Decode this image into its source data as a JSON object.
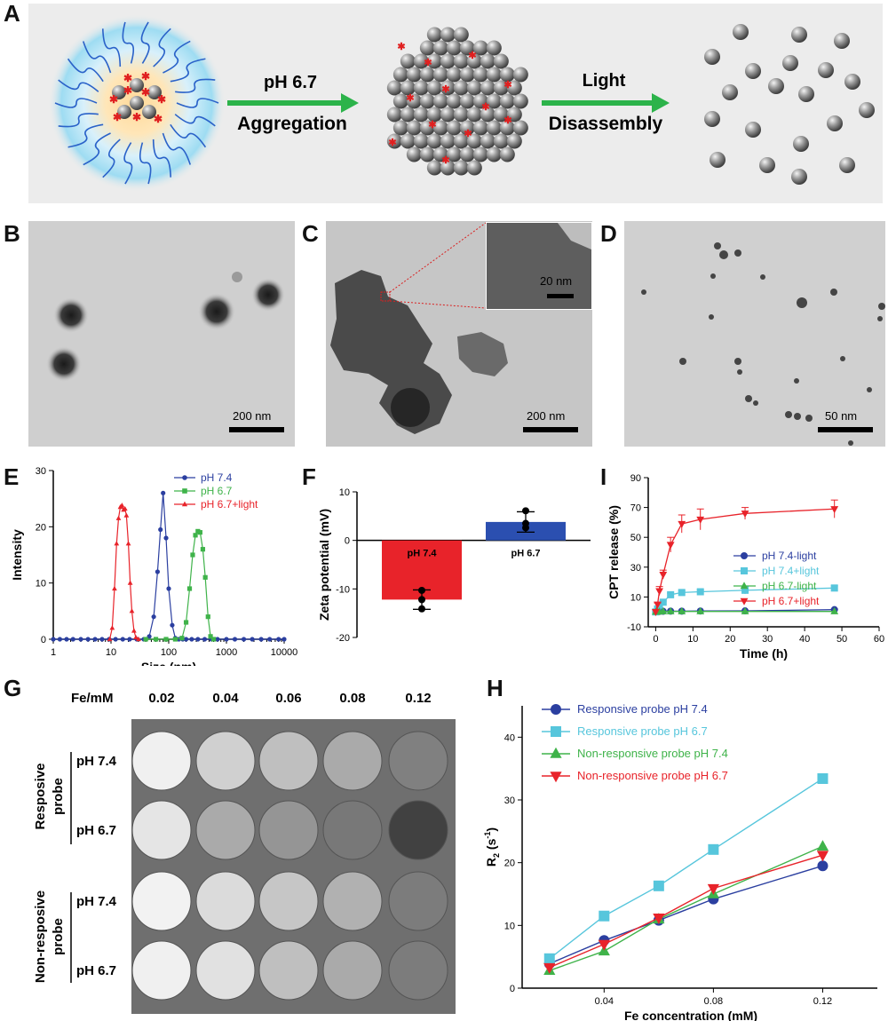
{
  "panel_labels": {
    "A": "A",
    "B": "B",
    "C": "C",
    "D": "D",
    "E": "E",
    "F": "F",
    "I": "I",
    "G": "G",
    "H": "H"
  },
  "schematic": {
    "arrow1_top": "pH 6.7",
    "arrow1_bottom": "Aggregation",
    "arrow2_top": "Light",
    "arrow2_bottom": "Disassembly"
  },
  "tem": {
    "b_scale": "200 nm",
    "c_scale": "200 nm",
    "c_inset_scale": "20 nm",
    "d_scale": "50 nm"
  },
  "colors": {
    "blue": "#2b3fa0",
    "green": "#3fb34a",
    "red": "#e8232a",
    "cyan": "#57c6dc",
    "arrow": "#2cb34a"
  },
  "mri": {
    "fe_label": "Fe/mM",
    "concentrations": [
      "0.02",
      "0.04",
      "0.06",
      "0.08",
      "0.12"
    ],
    "group1": "Resposive probe",
    "group1_line1": "Resposive",
    "group1_line2": "probe",
    "group2_line1": "Non-resposive",
    "group2_line2": "probe",
    "row_labels": [
      "pH 7.4",
      "pH 6.7",
      "pH 7.4",
      "pH 6.7"
    ],
    "brightness": [
      [
        0.95,
        0.8,
        0.72,
        0.62,
        0.42
      ],
      [
        0.9,
        0.62,
        0.52,
        0.38,
        0.12
      ],
      [
        0.96,
        0.85,
        0.75,
        0.65,
        0.4
      ],
      [
        0.95,
        0.88,
        0.72,
        0.62,
        0.4
      ]
    ]
  },
  "chart_data": [
    {
      "id": "E",
      "type": "line",
      "xscale": "log",
      "xlabel": "Size (nm)",
      "ylabel": "Intensity",
      "xlim": [
        1,
        10000
      ],
      "ylim": [
        0,
        30
      ],
      "xticks": [
        "1",
        "10",
        "100",
        "1000",
        "10000"
      ],
      "yticks": [
        "0",
        "10",
        "20",
        "30"
      ],
      "series": [
        {
          "name": "pH 7.4",
          "marker": "circle",
          "color": "#2b3fa0",
          "x": [
            1,
            1.3,
            1.7,
            2.2,
            3,
            4,
            5.3,
            7,
            9.3,
            12,
            16,
            21,
            28,
            37,
            46,
            55,
            64,
            72,
            80,
            90,
            100,
            115,
            130,
            150,
            175,
            200,
            250,
            320,
            420,
            550,
            700,
            1000,
            1400,
            2000,
            2800,
            4000,
            5600,
            8000,
            10000
          ],
          "y": [
            0,
            0,
            0,
            0,
            0,
            0,
            0,
            0,
            0,
            0,
            0,
            0,
            0,
            0,
            0.5,
            4,
            12,
            19.5,
            26,
            18,
            9,
            2.5,
            0.2,
            0,
            0,
            0,
            0,
            0,
            0,
            0,
            0,
            0,
            0,
            0,
            0,
            0,
            0,
            0,
            0
          ]
        },
        {
          "name": "pH 6.7",
          "marker": "square",
          "color": "#3fb34a",
          "x": [
            40,
            60,
            90,
            130,
            170,
            200,
            230,
            260,
            290,
            320,
            350,
            390,
            430,
            480,
            530,
            600
          ],
          "y": [
            0,
            0,
            0,
            0,
            0.2,
            3,
            9,
            15,
            18.5,
            19.2,
            19,
            16,
            11,
            4,
            0.5,
            0
          ]
        },
        {
          "name": "pH 6.7+light",
          "marker": "triangle",
          "color": "#e8232a",
          "x": [
            9.5,
            10.5,
            11.5,
            12.5,
            13.5,
            14.5,
            15.5,
            16.5,
            17.5,
            18.5,
            20,
            21.5,
            23,
            25,
            27,
            30
          ],
          "y": [
            0,
            2,
            9,
            17,
            21.5,
            23.5,
            23.8,
            23,
            23.2,
            22,
            17,
            10,
            5,
            1.5,
            0.3,
            0
          ]
        }
      ]
    },
    {
      "id": "F",
      "type": "bar",
      "ylabel": "Zeta potential (mV)",
      "ylim": [
        -20,
        10
      ],
      "yticks": [
        "-20",
        "-10",
        "0",
        "10"
      ],
      "categories": [
        "pH 7.4",
        "pH 6.7"
      ],
      "values": [
        -12.2,
        3.8
      ],
      "errors": [
        2.0,
        2.1
      ],
      "points": [
        [
          -10.3,
          -14.1,
          -12.2
        ],
        [
          6.1,
          2.6,
          3.5
        ]
      ],
      "bar_colors": [
        "#e8232a",
        "#2b4fb0"
      ]
    },
    {
      "id": "I",
      "type": "line",
      "xlabel": "Time (h)",
      "ylabel": "CPT release (%)",
      "xlim": [
        -2,
        60
      ],
      "ylim": [
        -10,
        90
      ],
      "xticks": [
        "0",
        "10",
        "20",
        "30",
        "40",
        "50",
        "60"
      ],
      "yticks": [
        "-10",
        "10",
        "30",
        "50",
        "70",
        "90"
      ],
      "series": [
        {
          "name": "pH 7.4-light",
          "marker": "circle",
          "color": "#2b3fa0",
          "x": [
            0,
            0.5,
            1,
            2,
            4,
            7,
            12,
            24,
            48
          ],
          "y": [
            0,
            0.2,
            0.3,
            0.4,
            0.5,
            0.5,
            0.6,
            0.7,
            1.5
          ],
          "err": [
            0,
            0,
            0,
            0,
            0,
            0,
            0,
            0,
            0.5
          ]
        },
        {
          "name": "pH 7.4+light",
          "marker": "square",
          "color": "#57c6dc",
          "x": [
            0,
            0.5,
            1,
            2,
            4,
            7,
            12,
            24,
            48
          ],
          "y": [
            0,
            2,
            4.5,
            6.5,
            11.5,
            13,
            13.5,
            14.5,
            16
          ],
          "err": [
            0,
            0.5,
            0.8,
            0.8,
            1,
            1.2,
            1.2,
            2.5,
            1.5
          ]
        },
        {
          "name": "pH 6.7-light",
          "marker": "triangle",
          "color": "#3fb34a",
          "x": [
            0,
            0.5,
            1,
            2,
            4,
            7,
            12,
            24,
            48
          ],
          "y": [
            0,
            0.1,
            0.2,
            0.3,
            0.3,
            0.3,
            0.3,
            0.3,
            0.3
          ],
          "err": [
            0,
            0,
            0,
            0,
            0,
            0,
            0,
            0,
            0
          ]
        },
        {
          "name": "pH 6.7+light",
          "marker": "triangle-down",
          "color": "#e8232a",
          "x": [
            0,
            0.5,
            1,
            2,
            4,
            7,
            12,
            24,
            48
          ],
          "y": [
            0,
            5,
            14,
            25,
            45,
            59,
            62,
            66,
            69
          ],
          "err": [
            0,
            1,
            3,
            3,
            5,
            6,
            7,
            4,
            6
          ]
        }
      ]
    },
    {
      "id": "H",
      "type": "line",
      "xlabel": "Fe concentration (mM)",
      "ylabel": "R",
      "ylabel_sub": "2",
      "ylabel_unit": " (s",
      "ylabel_sup": "-1",
      "ylabel_end": ")",
      "xlim": [
        0.01,
        0.14
      ],
      "ylim": [
        0,
        45
      ],
      "xticks": [
        "0.04",
        "0.08",
        "0.12"
      ],
      "yticks": [
        "0",
        "10",
        "20",
        "30",
        "40"
      ],
      "series": [
        {
          "name": "Responsive probe pH 7.4",
          "marker": "circle",
          "color": "#2b3fa0",
          "x": [
            0.02,
            0.04,
            0.06,
            0.08,
            0.12
          ],
          "y": [
            3.9,
            7.6,
            10.8,
            14.2,
            19.5
          ]
        },
        {
          "name": "Responsive probe pH 6.7",
          "marker": "square",
          "color": "#57c6dc",
          "x": [
            0.02,
            0.04,
            0.06,
            0.08,
            0.12
          ],
          "y": [
            4.7,
            11.5,
            16.3,
            22.1,
            33.4
          ]
        },
        {
          "name": "Non-responsive probe pH 7.4",
          "marker": "triangle",
          "color": "#3fb34a",
          "x": [
            0.02,
            0.04,
            0.06,
            0.08,
            0.12
          ],
          "y": [
            2.8,
            5.9,
            11.0,
            15.0,
            22.6
          ]
        },
        {
          "name": "Non-responsive probe pH 6.7",
          "marker": "triangle-down",
          "color": "#e8232a",
          "x": [
            0.02,
            0.04,
            0.06,
            0.08,
            0.12
          ],
          "y": [
            3.3,
            7.0,
            11.2,
            15.9,
            21.2
          ]
        }
      ]
    }
  ]
}
